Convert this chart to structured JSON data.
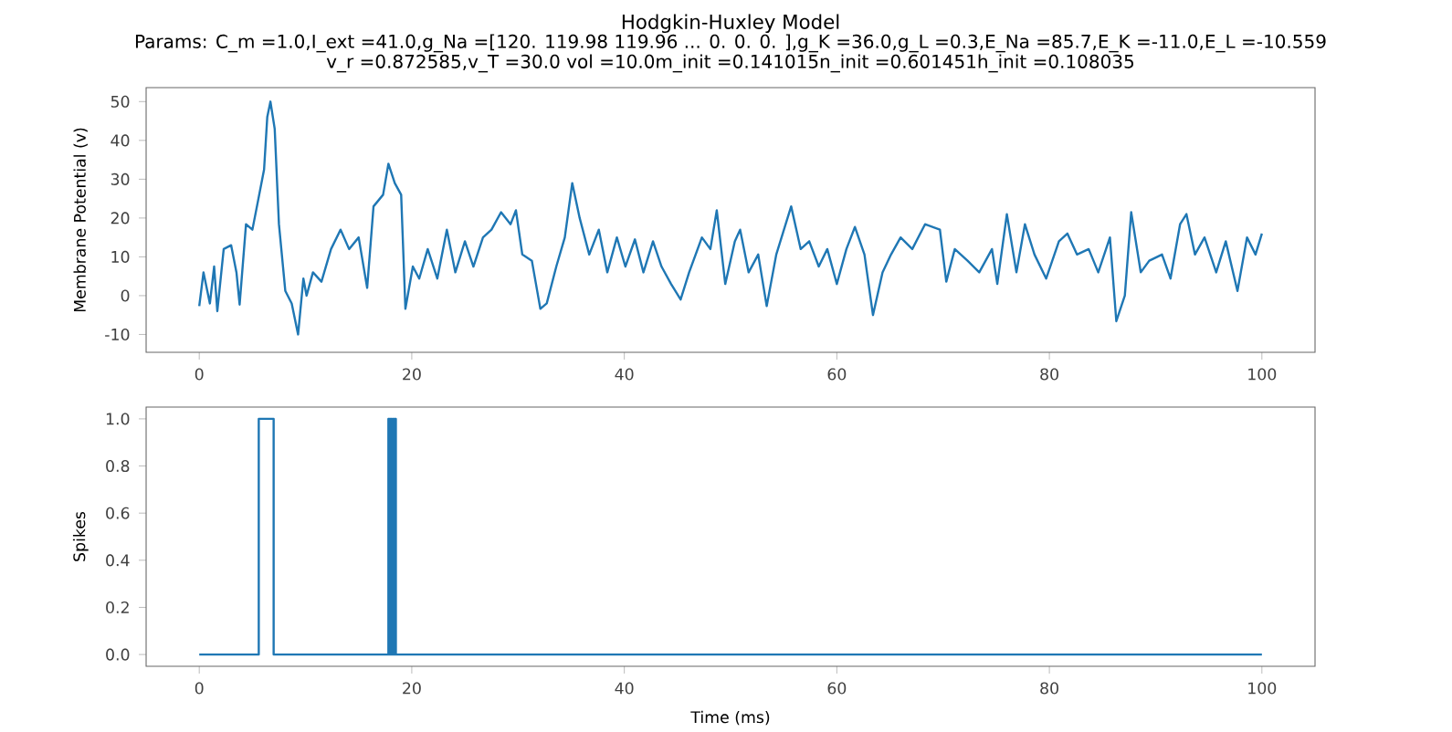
{
  "chart_data": [
    {
      "type": "line",
      "title": "Hodgkin-Huxley Model",
      "subtitle": "Params: C_m =1.0,I_ext =41.0,g_Na =[120.    119.98 119.96 ...   0.     0.     0.  ],g_K =36.0,g_L =0.3,E_Na =85.7,E_K =-11.0,E_L =-10.559",
      "annotations": [
        "v_r =0.872585,v_T =30.0 vol =10.0m_init =0.141015n_init =0.601451h_init =0.108035"
      ],
      "ylabel": "Membrane Potential (v)",
      "color": "#1f77b4",
      "x": [
        0,
        0.4,
        1,
        1.4,
        1.7,
        2.3,
        3,
        3.5,
        3.8,
        4.4,
        5,
        5.5,
        6.1,
        6.4,
        6.7,
        7.1,
        7.5,
        8.1,
        8.7,
        9.3,
        9.8,
        10.1,
        10.7,
        11.5,
        12.4,
        13.3,
        14.1,
        15,
        15.8,
        16.4,
        17.3,
        17.8,
        18.4,
        19,
        19.4,
        20.1,
        20.7,
        21.5,
        22.4,
        23.3,
        24.1,
        25,
        25.8,
        26.7,
        27.5,
        28.4,
        29.3,
        29.8,
        30.4,
        31.3,
        32.1,
        32.7,
        33.6,
        34.4,
        35.1,
        35.8,
        36.7,
        37.6,
        38.4,
        39.3,
        40.1,
        41,
        41.8,
        42.7,
        43.5,
        44.4,
        45.3,
        46.1,
        47.3,
        48.1,
        48.7,
        49.5,
        50.4,
        50.9,
        51.7,
        52.6,
        53.4,
        54.3,
        55.7,
        56.6,
        57.4,
        58.3,
        59.1,
        60,
        60.9,
        61.7,
        62.6,
        63.4,
        64.3,
        65.1,
        66,
        67.1,
        68.3,
        69.7,
        70.3,
        71.1,
        72.3,
        73.4,
        74.6,
        75.1,
        76,
        76.9,
        77.7,
        78.6,
        79.7,
        80.9,
        81.7,
        82.6,
        83.7,
        84.6,
        85.7,
        86.3,
        87.1,
        87.7,
        88.6,
        89.4,
        90.6,
        91.4,
        92.3,
        92.9,
        93.7,
        94.6,
        95.7,
        96.6,
        97.7,
        98.6,
        99.4,
        100
      ],
      "values": [
        -2.7,
        6,
        -2,
        7.5,
        -4,
        12,
        13,
        6,
        -2.3,
        18.4,
        17,
        24,
        32.5,
        46,
        50,
        43,
        18.4,
        1.2,
        -2,
        -10,
        4.4,
        0,
        6,
        3.6,
        12,
        17,
        12,
        15,
        2,
        23,
        26,
        34,
        29,
        26,
        -3.4,
        7.5,
        4.4,
        12,
        4.4,
        17,
        6,
        14,
        7.5,
        15,
        17,
        21.5,
        18.4,
        22,
        10.6,
        9,
        -3.4,
        -2,
        7.5,
        15,
        29,
        20,
        10.6,
        17,
        6,
        15,
        7.5,
        14.5,
        6,
        14,
        7.5,
        3,
        -1,
        6,
        15,
        12,
        22,
        3,
        14,
        17,
        6,
        10.6,
        -2.7,
        10.6,
        23,
        12,
        14,
        7.5,
        12,
        3,
        12,
        17.7,
        10.6,
        -5,
        6,
        10.6,
        15,
        12,
        18.4,
        17,
        3.6,
        12,
        9,
        6,
        12,
        3,
        21,
        6,
        18.4,
        10.6,
        4.4,
        14,
        16,
        10.6,
        12,
        6,
        15,
        -6.6,
        0,
        21.5,
        6,
        9,
        10.6,
        4.4,
        18.4,
        21,
        10.6,
        15,
        6,
        14,
        1.2,
        15,
        10.6,
        16
      ],
      "xlim": [
        -5,
        105
      ],
      "xticks": [
        0,
        20,
        40,
        60,
        80,
        100
      ],
      "ylim": [
        -14.6,
        53.6
      ],
      "yticks": [
        -10,
        0,
        10,
        20,
        30,
        40,
        50
      ]
    },
    {
      "type": "step",
      "xlabel": "Time (ms)",
      "ylabel": "Spikes",
      "color": "#1f77b4",
      "x": [
        0,
        5.6,
        7.0,
        17.8,
        17.9,
        18.0,
        18.1,
        18.2,
        18.3,
        18.4,
        18.5,
        100
      ],
      "values": [
        0,
        1,
        0,
        1,
        0,
        1,
        0,
        1,
        0,
        1,
        0,
        0
      ],
      "xlim": [
        -5,
        105
      ],
      "xticks": [
        0,
        20,
        40,
        60,
        80,
        100
      ],
      "ylim": [
        -0.05,
        1.05
      ],
      "yticks": [
        {
          "value": 0,
          "label": "0.0"
        },
        {
          "value": 0.2,
          "label": "0.2"
        },
        {
          "value": 0.4,
          "label": "0.4"
        },
        {
          "value": 0.6,
          "label": "0.6"
        },
        {
          "value": 0.8,
          "label": "0.8"
        },
        {
          "value": 1,
          "label": "1.0"
        }
      ]
    }
  ]
}
